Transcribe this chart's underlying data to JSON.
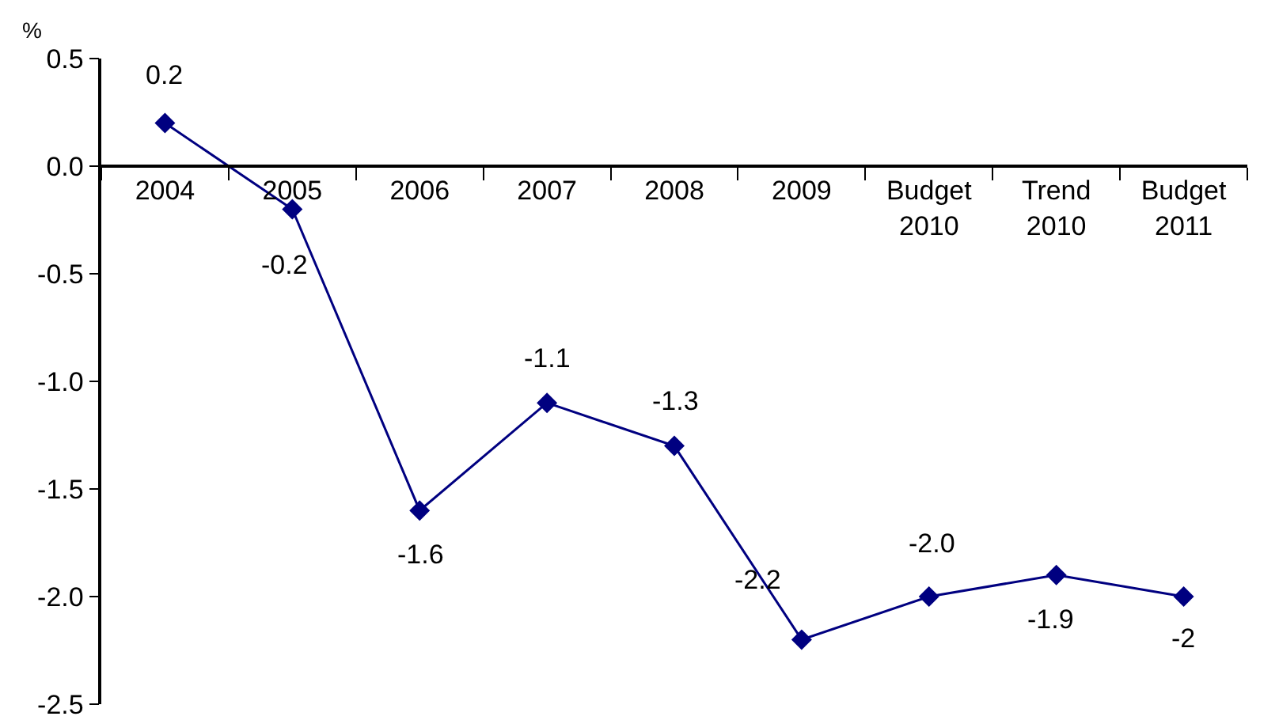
{
  "chart_data": {
    "type": "line",
    "ylabel": "%",
    "categories": [
      "2004",
      "2005",
      "2006",
      "2007",
      "2008",
      "2009",
      "Budget 2010",
      "Trend 2010",
      "Budget 2011"
    ],
    "series": [
      {
        "color": "#000080",
        "values": [
          0.2,
          -0.2,
          -1.6,
          -1.1,
          -1.3,
          -2.2,
          -2.0,
          -1.9,
          -2
        ],
        "value_labels": [
          "0.2",
          "-0.2",
          "-1.6",
          "-1.1",
          "-1.3",
          "-2.2",
          "-2.0",
          "-1.9",
          "-2"
        ]
      }
    ],
    "ylim": [
      -2.5,
      0.5
    ],
    "yticks": [
      {
        "value": 0.5,
        "label": "0.5"
      },
      {
        "value": 0,
        "label": "0.0"
      },
      {
        "value": -0.5,
        "label": "-0.5"
      },
      {
        "value": -1,
        "label": "-1.0"
      },
      {
        "value": -1.5,
        "label": "-1.5"
      },
      {
        "value": -2,
        "label": "-2.0"
      },
      {
        "value": -2.5,
        "label": "-2.5"
      }
    ],
    "grid": false,
    "marker": "diamond",
    "line_style": "solid"
  }
}
